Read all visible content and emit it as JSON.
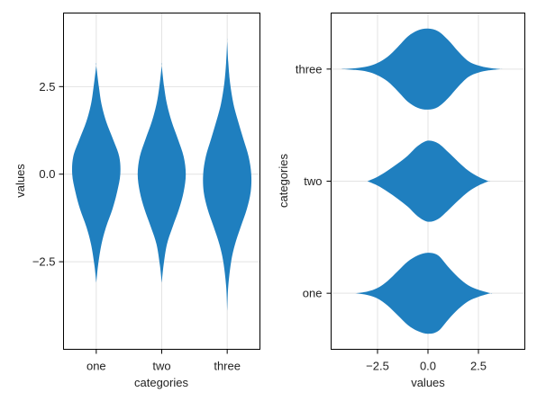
{
  "chart_data": [
    {
      "type": "violin",
      "orientation": "vertical",
      "xlabel": "categories",
      "ylabel": "values",
      "categories": [
        "one",
        "two",
        "three"
      ],
      "value_axis": {
        "ticks": [
          -2.5,
          0.0,
          2.5
        ],
        "tick_labels": [
          "−2.5",
          "0.0",
          "2.5"
        ],
        "range": [
          -5.0,
          4.6
        ]
      },
      "grid": true,
      "color": "#1f7fbf",
      "violins": [
        {
          "category": "one",
          "min": -3.1,
          "max": 3.1,
          "profile": [
            [
              -3.1,
              0
            ],
            [
              -2.6,
              0.07
            ],
            [
              -2.0,
              0.2
            ],
            [
              -1.5,
              0.38
            ],
            [
              -1.0,
              0.62
            ],
            [
              -0.5,
              0.8
            ],
            [
              0.0,
              0.92
            ],
            [
              0.5,
              0.88
            ],
            [
              1.0,
              0.64
            ],
            [
              1.5,
              0.38
            ],
            [
              2.0,
              0.2
            ],
            [
              2.5,
              0.1
            ],
            [
              3.1,
              0
            ]
          ]
        },
        {
          "category": "two",
          "min": -3.1,
          "max": 3.1,
          "profile": [
            [
              -3.1,
              0
            ],
            [
              -2.6,
              0.07
            ],
            [
              -2.0,
              0.2
            ],
            [
              -1.5,
              0.42
            ],
            [
              -1.0,
              0.66
            ],
            [
              -0.5,
              0.84
            ],
            [
              0.0,
              0.92
            ],
            [
              0.5,
              0.84
            ],
            [
              1.0,
              0.62
            ],
            [
              1.5,
              0.38
            ],
            [
              2.0,
              0.2
            ],
            [
              2.5,
              0.09
            ],
            [
              3.1,
              0
            ]
          ]
        },
        {
          "category": "three",
          "min": -3.9,
          "max": 3.8,
          "profile": [
            [
              -3.9,
              0
            ],
            [
              -3.2,
              0.04
            ],
            [
              -2.5,
              0.15
            ],
            [
              -2.0,
              0.3
            ],
            [
              -1.5,
              0.52
            ],
            [
              -1.0,
              0.75
            ],
            [
              -0.5,
              0.9
            ],
            [
              0.0,
              0.92
            ],
            [
              0.5,
              0.82
            ],
            [
              1.0,
              0.62
            ],
            [
              1.5,
              0.42
            ],
            [
              2.0,
              0.24
            ],
            [
              2.6,
              0.11
            ],
            [
              3.2,
              0.04
            ],
            [
              3.8,
              0
            ]
          ]
        }
      ]
    },
    {
      "type": "violin",
      "orientation": "horizontal",
      "xlabel": "values",
      "ylabel": "categories",
      "categories": [
        "one",
        "two",
        "three"
      ],
      "value_axis": {
        "ticks": [
          -2.5,
          0.0,
          2.5
        ],
        "tick_labels": [
          "−2.5",
          "0.0",
          "2.5"
        ],
        "range": [
          -4.8,
          4.8
        ]
      },
      "grid": true,
      "color": "#1f7fbf",
      "violins": [
        {
          "category": "one",
          "min": -3.6,
          "max": 3.1,
          "profile": [
            [
              -3.6,
              0
            ],
            [
              -3.0,
              0.04
            ],
            [
              -2.5,
              0.12
            ],
            [
              -2.0,
              0.28
            ],
            [
              -1.5,
              0.5
            ],
            [
              -1.0,
              0.72
            ],
            [
              -0.5,
              0.86
            ],
            [
              0.0,
              0.92
            ],
            [
              0.5,
              0.86
            ],
            [
              1.0,
              0.6
            ],
            [
              1.5,
              0.36
            ],
            [
              2.0,
              0.18
            ],
            [
              2.5,
              0.08
            ],
            [
              3.1,
              0
            ]
          ]
        },
        {
          "category": "two",
          "min": -3.0,
          "max": 3.0,
          "profile": [
            [
              -3.0,
              0
            ],
            [
              -2.5,
              0.1
            ],
            [
              -2.0,
              0.24
            ],
            [
              -1.5,
              0.4
            ],
            [
              -1.0,
              0.58
            ],
            [
              -0.5,
              0.8
            ],
            [
              0.0,
              0.92
            ],
            [
              0.5,
              0.86
            ],
            [
              1.0,
              0.66
            ],
            [
              1.5,
              0.44
            ],
            [
              2.0,
              0.24
            ],
            [
              2.5,
              0.1
            ],
            [
              3.0,
              0
            ]
          ]
        },
        {
          "category": "three",
          "min": -4.3,
          "max": 3.6,
          "profile": [
            [
              -4.3,
              0
            ],
            [
              -3.6,
              0.02
            ],
            [
              -3.0,
              0.06
            ],
            [
              -2.5,
              0.14
            ],
            [
              -2.0,
              0.28
            ],
            [
              -1.5,
              0.5
            ],
            [
              -1.0,
              0.74
            ],
            [
              -0.5,
              0.88
            ],
            [
              0.0,
              0.92
            ],
            [
              0.5,
              0.86
            ],
            [
              1.0,
              0.66
            ],
            [
              1.5,
              0.4
            ],
            [
              2.0,
              0.18
            ],
            [
              2.5,
              0.08
            ],
            [
              3.0,
              0.03
            ],
            [
              3.6,
              0
            ]
          ]
        }
      ]
    }
  ]
}
